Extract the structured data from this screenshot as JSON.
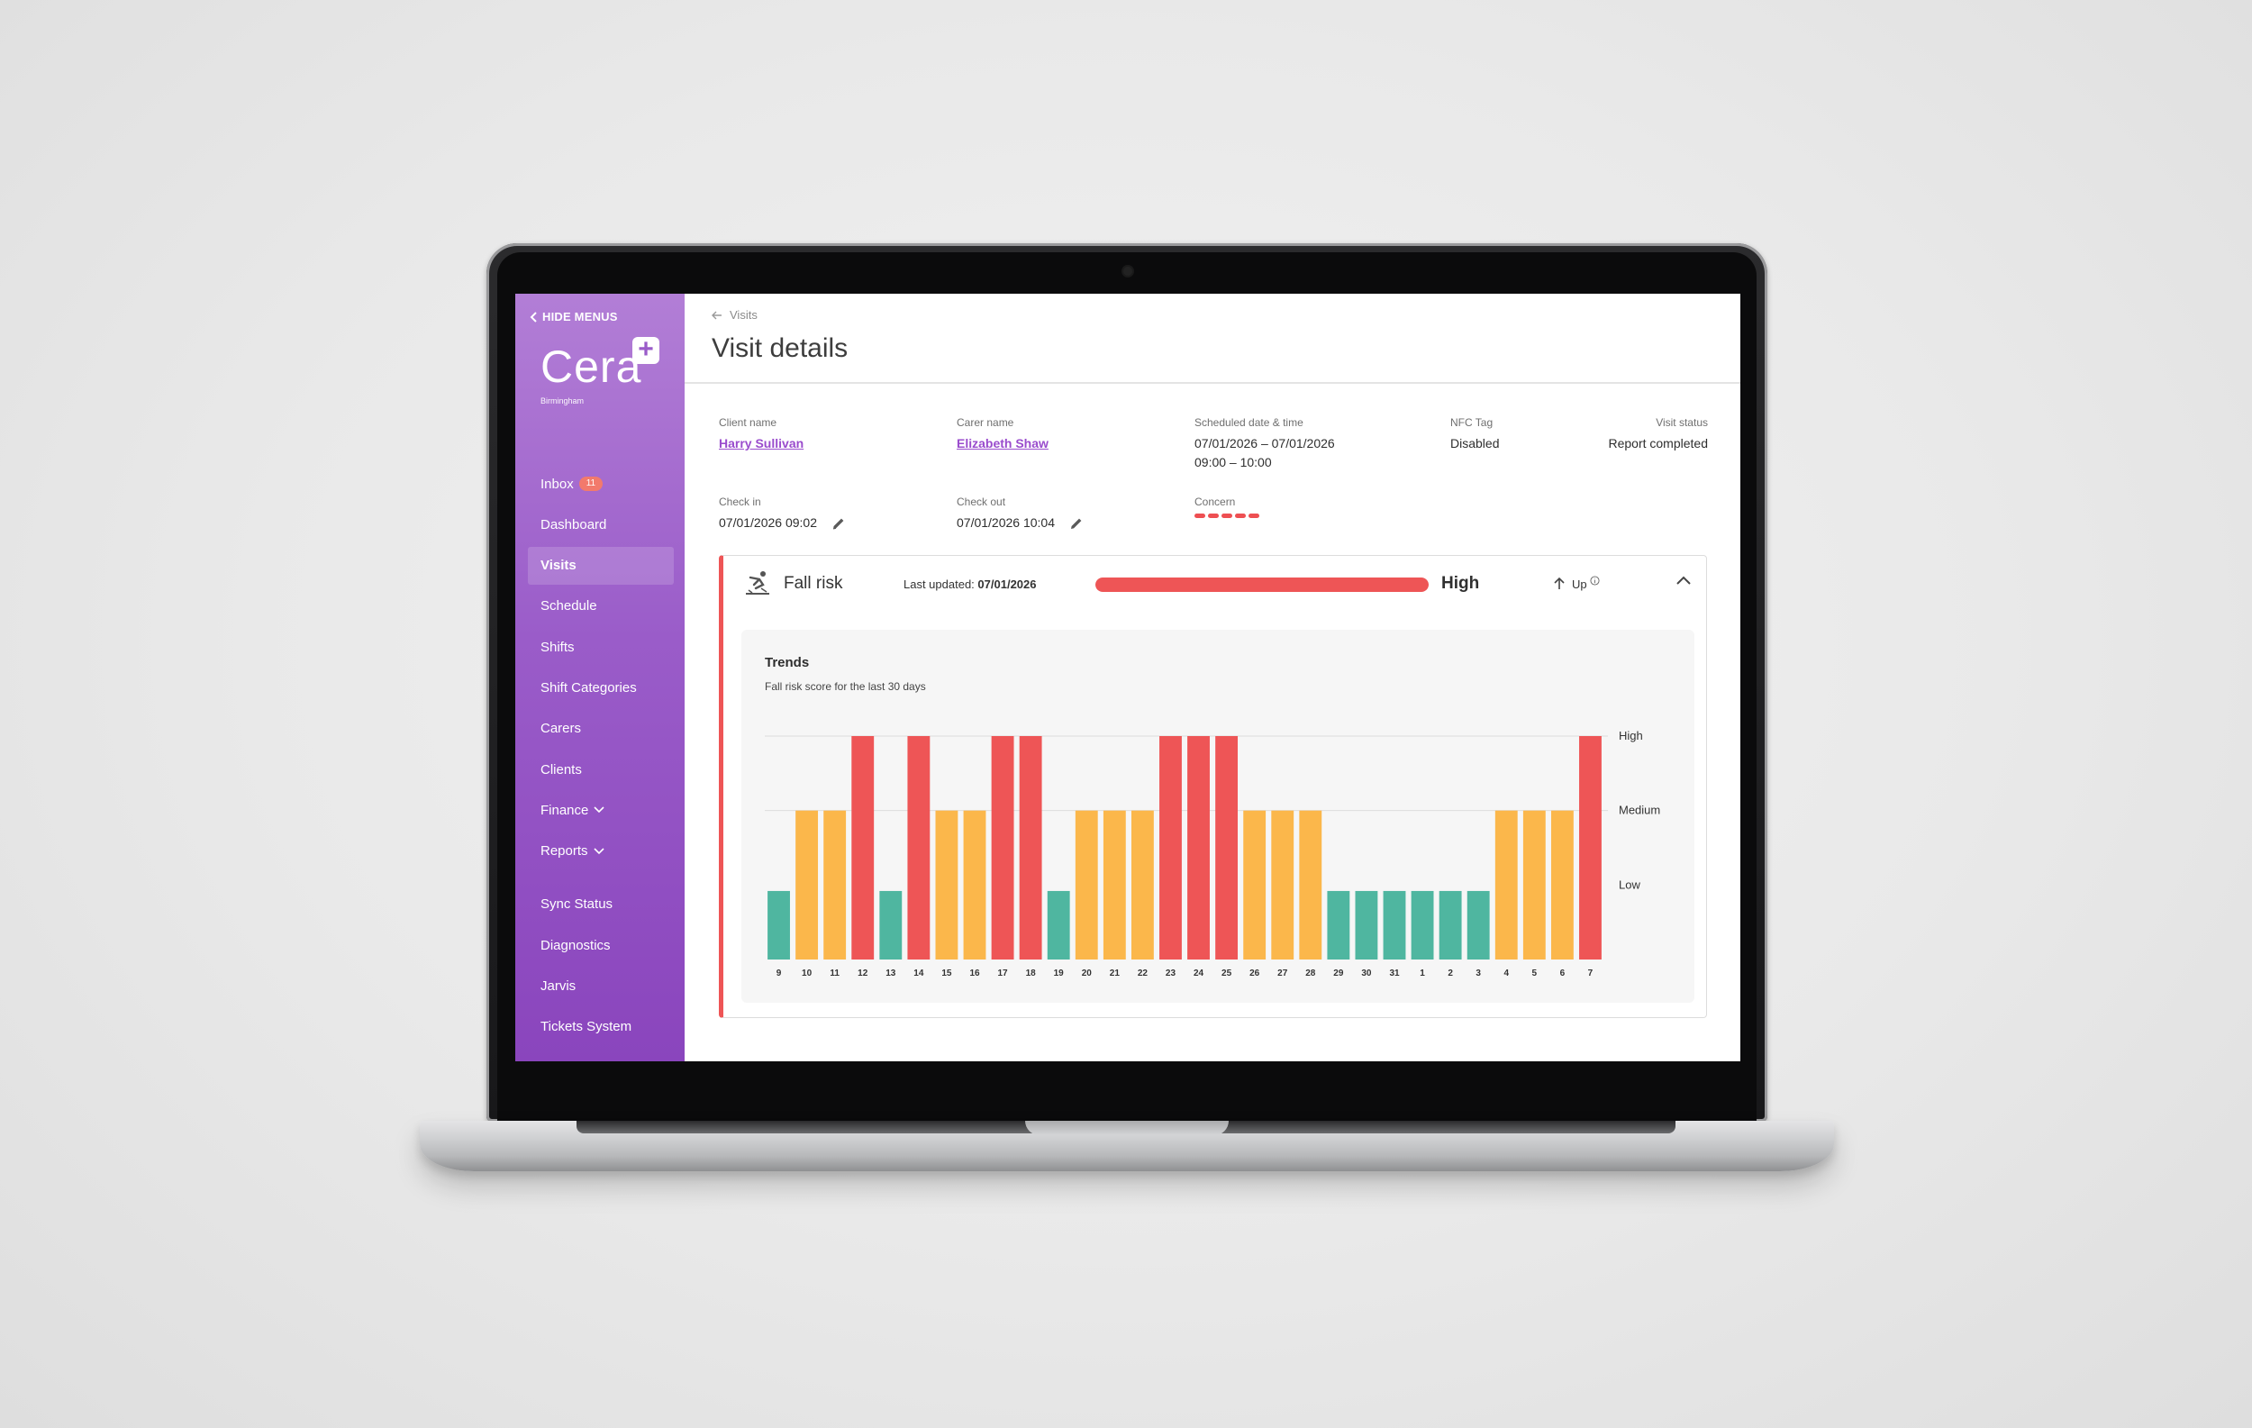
{
  "sidebar": {
    "hide_menus": "HIDE MENUS",
    "logo": "Cera",
    "logo_location": "Birmingham",
    "inbox_badge": "11",
    "items": [
      {
        "label": "Inbox"
      },
      {
        "label": "Dashboard"
      },
      {
        "label": "Visits"
      },
      {
        "label": "Schedule"
      },
      {
        "label": "Shifts"
      },
      {
        "label": "Shift Categories"
      },
      {
        "label": "Carers"
      },
      {
        "label": "Clients"
      },
      {
        "label": "Finance"
      },
      {
        "label": "Reports"
      },
      {
        "label": "Sync Status"
      },
      {
        "label": "Diagnostics"
      },
      {
        "label": "Jarvis"
      },
      {
        "label": "Tickets System"
      }
    ],
    "active_item": "Visits"
  },
  "header": {
    "breadcrumb": "Visits",
    "title": "Visit details"
  },
  "visit": {
    "client_name_label": "Client name",
    "client_name": "Harry Sullivan",
    "carer_name_label": "Carer name",
    "carer_name": "Elizabeth Shaw",
    "scheduled_label": "Scheduled date & time",
    "scheduled_dates": "07/01/2026 – 07/01/2026",
    "scheduled_times": "09:00 – 10:00",
    "nfc_label": "NFC Tag",
    "nfc_value": "Disabled",
    "status_label": "Visit status",
    "status_value": "Report completed",
    "checkin_label": "Check in",
    "checkin_value": "07/01/2026 09:02",
    "checkout_label": "Check out",
    "checkout_value": "07/01/2026 10:04",
    "concern_label": "Concern",
    "concern_level": 5
  },
  "fall_risk": {
    "title": "Fall risk",
    "last_updated_label": "Last updated:",
    "last_updated": "07/01/2026",
    "level": "High",
    "bar_fill": 1.0,
    "trend": "Up",
    "colors": {
      "high": "#ee5556",
      "medium": "#fbb74b",
      "low": "#4fb6a0"
    }
  },
  "trends": {
    "title": "Trends",
    "subtitle": "Fall risk score for the last 30 days"
  },
  "chart_data": {
    "type": "bar",
    "title": "Trends",
    "subtitle": "Fall risk score for the last 30 days",
    "categories": [
      "9",
      "10",
      "11",
      "12",
      "13",
      "14",
      "15",
      "16",
      "17",
      "18",
      "19",
      "20",
      "21",
      "22",
      "23",
      "24",
      "25",
      "26",
      "27",
      "28",
      "29",
      "30",
      "31",
      "1",
      "2",
      "3",
      "4",
      "5",
      "6",
      "7"
    ],
    "values": [
      1,
      2,
      2,
      3,
      1,
      3,
      2,
      2,
      3,
      3,
      1,
      2,
      2,
      2,
      3,
      3,
      3,
      2,
      2,
      2,
      1,
      1,
      1,
      1,
      1,
      1,
      2,
      2,
      2,
      3
    ],
    "y_levels": [
      "Low",
      "Medium",
      "High"
    ],
    "ylim": [
      0,
      3
    ],
    "grid": true,
    "xlabel": "",
    "ylabel": ""
  }
}
